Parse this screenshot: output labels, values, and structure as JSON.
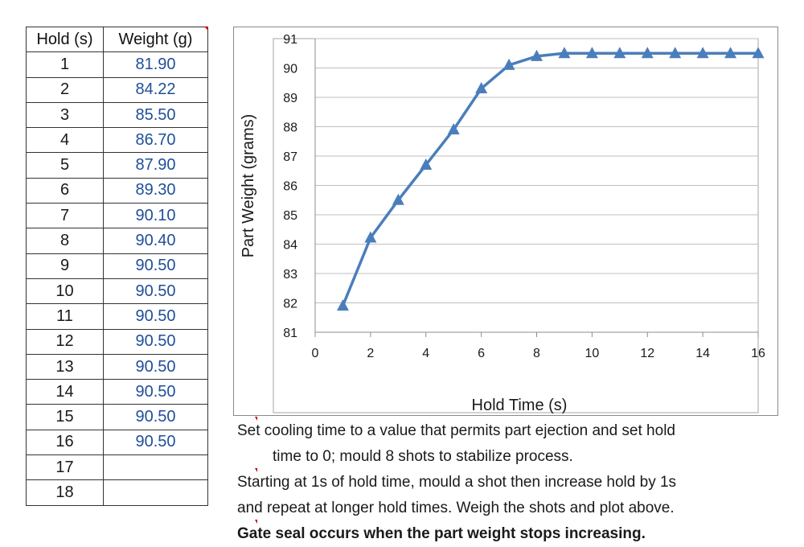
{
  "table": {
    "headers": [
      "Hold (s)",
      "Weight (g)"
    ],
    "rows": [
      [
        "1",
        "81.90"
      ],
      [
        "2",
        "84.22"
      ],
      [
        "3",
        "85.50"
      ],
      [
        "4",
        "86.70"
      ],
      [
        "5",
        "87.90"
      ],
      [
        "6",
        "89.30"
      ],
      [
        "7",
        "90.10"
      ],
      [
        "8",
        "90.40"
      ],
      [
        "9",
        "90.50"
      ],
      [
        "10",
        "90.50"
      ],
      [
        "11",
        "90.50"
      ],
      [
        "12",
        "90.50"
      ],
      [
        "13",
        "90.50"
      ],
      [
        "14",
        "90.50"
      ],
      [
        "15",
        "90.50"
      ],
      [
        "16",
        "90.50"
      ],
      [
        "17",
        ""
      ],
      [
        "18",
        ""
      ]
    ]
  },
  "chart_data": {
    "type": "line",
    "xlabel": "Hold Time (s)",
    "ylabel": "Part Weight (grams)",
    "xlim": [
      0,
      16
    ],
    "ylim": [
      81,
      91
    ],
    "x_ticks": [
      0,
      2,
      4,
      6,
      8,
      10,
      12,
      14,
      16
    ],
    "y_ticks": [
      81,
      82,
      83,
      84,
      85,
      86,
      87,
      88,
      89,
      90,
      91
    ],
    "grid": "horizontal",
    "marker": "triangle",
    "series_color": "#4a7ebb",
    "series": [
      {
        "x": [
          1,
          2,
          3,
          4,
          5,
          6,
          7,
          8,
          9,
          10,
          11,
          12,
          13,
          14,
          15,
          16
        ],
        "y": [
          81.9,
          84.22,
          85.5,
          86.7,
          87.9,
          89.3,
          90.1,
          90.4,
          90.5,
          90.5,
          90.5,
          90.5,
          90.5,
          90.5,
          90.5,
          90.5
        ]
      }
    ]
  },
  "notes": {
    "line1": "Set cooling time to a value that permits part ejection and set hold",
    "line2": "time to 0; mould 8 shots to stabilize process.",
    "line3": "Starting at 1s of hold time, mould a shot then increase hold by 1s",
    "line4": "and repeat at longer hold times.  Weigh the shots and plot above.",
    "line5": "Gate seal occurs when the part weight stops increasing."
  }
}
